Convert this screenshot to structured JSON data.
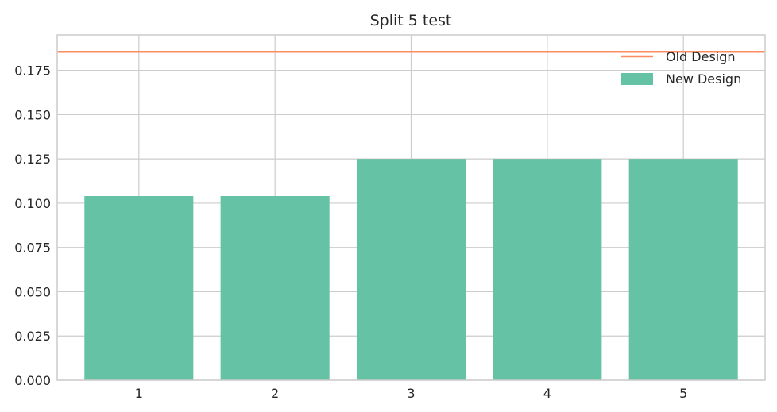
{
  "chart_data": {
    "type": "bar",
    "title": "Split 5 test",
    "xlabel": "",
    "ylabel": "",
    "categories": [
      "1",
      "2",
      "3",
      "4",
      "5"
    ],
    "series": [
      {
        "name": "New Design",
        "values": [
          0.104,
          0.104,
          0.125,
          0.125,
          0.125
        ],
        "color": "#66c2a5"
      }
    ],
    "reference_line": {
      "name": "Old Design",
      "value": 0.1855,
      "color": "#fc8d62"
    },
    "ylim": [
      0,
      0.195
    ],
    "yticks": [
      "0.000",
      "0.025",
      "0.050",
      "0.075",
      "0.100",
      "0.125",
      "0.150",
      "0.175"
    ],
    "grid": true,
    "legend_position": "top-right",
    "grid_color": "#cccccc",
    "axis_color": "#cccccc"
  }
}
